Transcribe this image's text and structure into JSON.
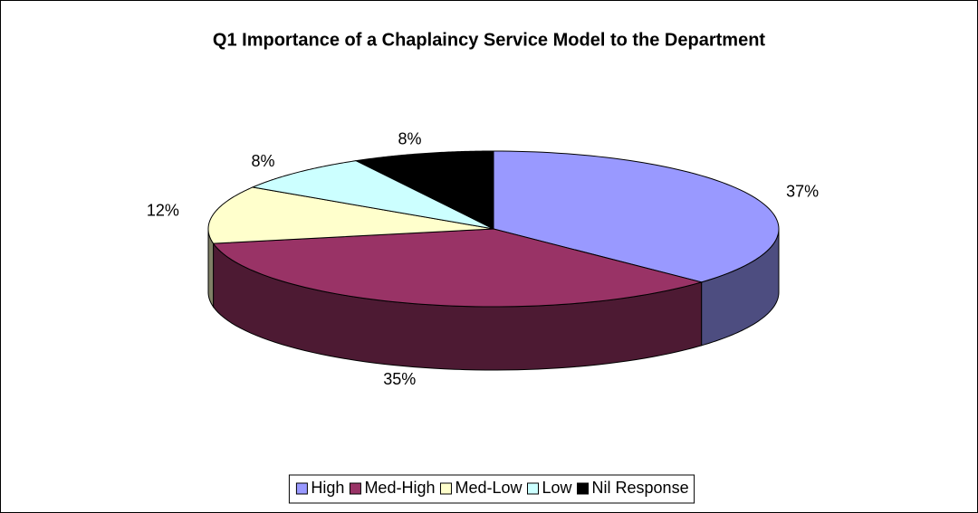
{
  "chart_data": {
    "type": "pie",
    "title": "Q1  Importance of a Chaplaincy Service Model to the Department",
    "categories": [
      "High",
      "Med-High",
      "Med-Low",
      "Low",
      "Nil Response"
    ],
    "values": [
      37,
      35,
      12,
      8,
      8
    ],
    "value_labels": [
      "37%",
      "35%",
      "12%",
      "8%",
      "8%"
    ],
    "colors": [
      "#9999ff",
      "#993366",
      "#ffffcc",
      "#ccffff",
      "#000000"
    ],
    "legend": "bottom"
  }
}
